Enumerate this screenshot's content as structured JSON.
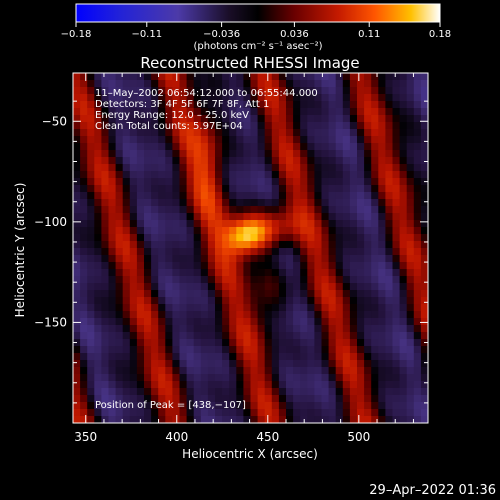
{
  "chart_data": {
    "type": "heatmap",
    "title": "Reconstructed RHESSI Image",
    "xlabel": "Heliocentric X (arcsec)",
    "ylabel": "Heliocentric Y (arcsec)",
    "xlim": [
      343,
      538
    ],
    "ylim": [
      -200,
      -26
    ],
    "x_ticks": [
      350,
      400,
      450,
      500
    ],
    "y_ticks": [
      -50,
      -100,
      -150
    ],
    "x_tick_labels": [
      "350",
      "400",
      "450",
      "500"
    ],
    "y_tick_labels": [
      "−50",
      "−100",
      "−150"
    ],
    "peak": {
      "x": 438,
      "y": -107,
      "value": 0.18
    },
    "colorbar": {
      "vmin": -0.18,
      "vmax": 0.18,
      "ticks": [
        -0.18,
        -0.11,
        -0.036,
        0.036,
        0.11,
        0.18
      ],
      "tick_labels": [
        "−0.18",
        "−0.11",
        "−0.036",
        "0.036",
        "0.11",
        "0.18"
      ],
      "unit_label": "(photons cm⁻² s⁻¹ asec⁻²)"
    },
    "annotations": [
      "11–May–2002 06:54:12.000 to 06:55:44.000",
      "Detectors: 3F 4F 5F 6F 7F 8F, Att 1",
      "Energy Range: 12.0 – 25.0 keV",
      "Clean     Total counts: 5.97E+04"
    ],
    "peak_label": "Position of Peak = [438,−107]"
  },
  "footer_date": "29–Apr–2022 01:36"
}
